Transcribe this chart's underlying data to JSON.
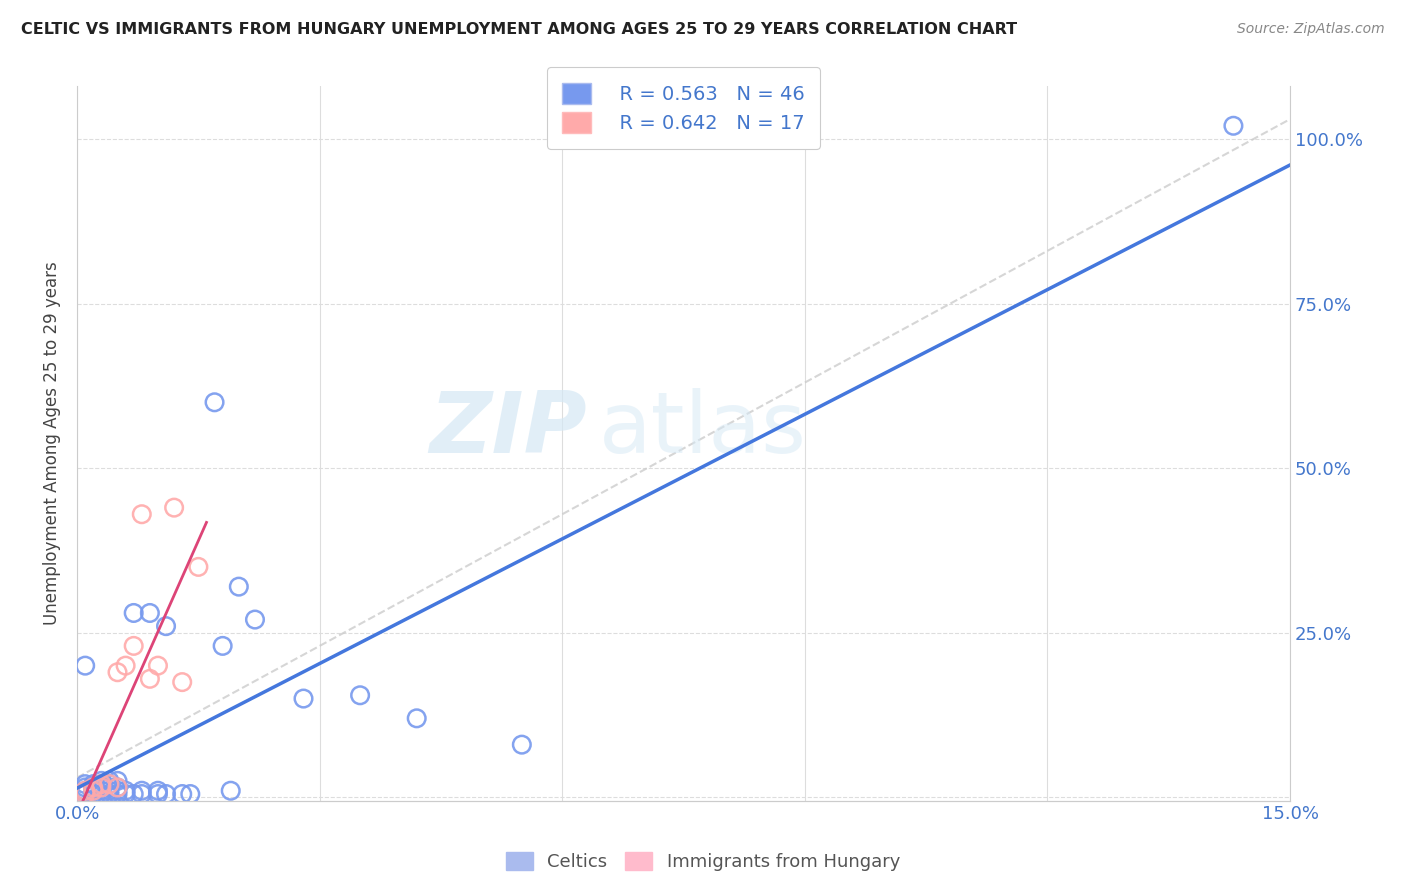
{
  "title": "CELTIC VS IMMIGRANTS FROM HUNGARY UNEMPLOYMENT AMONG AGES 25 TO 29 YEARS CORRELATION CHART",
  "source": "Source: ZipAtlas.com",
  "ylabel": "Unemployment Among Ages 25 to 29 years",
  "xlim": [
    0,
    0.15
  ],
  "ylim": [
    -0.005,
    1.08
  ],
  "xtick_positions": [
    0.0,
    0.03,
    0.06,
    0.09,
    0.12,
    0.15
  ],
  "xticklabels": [
    "0.0%",
    "",
    "",
    "",
    "",
    "15.0%"
  ],
  "ytick_positions": [
    0.0,
    0.25,
    0.5,
    0.75,
    1.0
  ],
  "yticklabels_right": [
    "",
    "25.0%",
    "50.0%",
    "75.0%",
    "100.0%"
  ],
  "celtics_color": "#7799ee",
  "hungary_color": "#ffaaaa",
  "trend_celtics_color": "#4477dd",
  "trend_hungary_color": "#dd4477",
  "trend_gray_color": "#cccccc",
  "legend_r_celtics": "R = 0.563",
  "legend_n_celtics": "N = 46",
  "legend_r_hungary": "R = 0.642",
  "legend_n_hungary": "N = 17",
  "watermark": "ZIPatlas",
  "celtics_x": [
    0.001,
    0.001,
    0.001,
    0.001,
    0.001,
    0.002,
    0.002,
    0.002,
    0.002,
    0.003,
    0.003,
    0.003,
    0.003,
    0.003,
    0.004,
    0.004,
    0.004,
    0.004,
    0.004,
    0.005,
    0.005,
    0.005,
    0.005,
    0.006,
    0.006,
    0.007,
    0.007,
    0.008,
    0.008,
    0.009,
    0.01,
    0.01,
    0.011,
    0.011,
    0.013,
    0.014,
    0.017,
    0.018,
    0.019,
    0.02,
    0.022,
    0.028,
    0.035,
    0.042,
    0.055,
    0.143
  ],
  "celtics_y": [
    0.005,
    0.01,
    0.015,
    0.02,
    0.2,
    0.005,
    0.01,
    0.015,
    0.02,
    0.005,
    0.01,
    0.015,
    0.02,
    0.025,
    0.005,
    0.01,
    0.015,
    0.02,
    0.025,
    0.005,
    0.01,
    0.015,
    0.025,
    0.005,
    0.01,
    0.005,
    0.28,
    0.005,
    0.01,
    0.28,
    0.005,
    0.01,
    0.005,
    0.26,
    0.005,
    0.005,
    0.6,
    0.23,
    0.01,
    0.32,
    0.27,
    0.15,
    0.155,
    0.12,
    0.08,
    1.02
  ],
  "hungary_x": [
    0.001,
    0.001,
    0.002,
    0.002,
    0.003,
    0.003,
    0.004,
    0.005,
    0.005,
    0.006,
    0.007,
    0.008,
    0.009,
    0.01,
    0.012,
    0.013,
    0.015
  ],
  "hungary_y": [
    0.005,
    0.01,
    0.01,
    0.015,
    0.015,
    0.02,
    0.02,
    0.015,
    0.19,
    0.2,
    0.23,
    0.43,
    0.18,
    0.2,
    0.44,
    0.175,
    0.35
  ],
  "celtics_trend_x": [
    0.0,
    0.15
  ],
  "celtics_trend_y": [
    0.0,
    1.02
  ],
  "hungary_trend_x": [
    0.0,
    0.015
  ],
  "hungary_trend_y": [
    0.0,
    0.35
  ],
  "gray_trend_x": [
    0.0,
    0.15
  ],
  "gray_trend_y": [
    0.02,
    1.0
  ]
}
